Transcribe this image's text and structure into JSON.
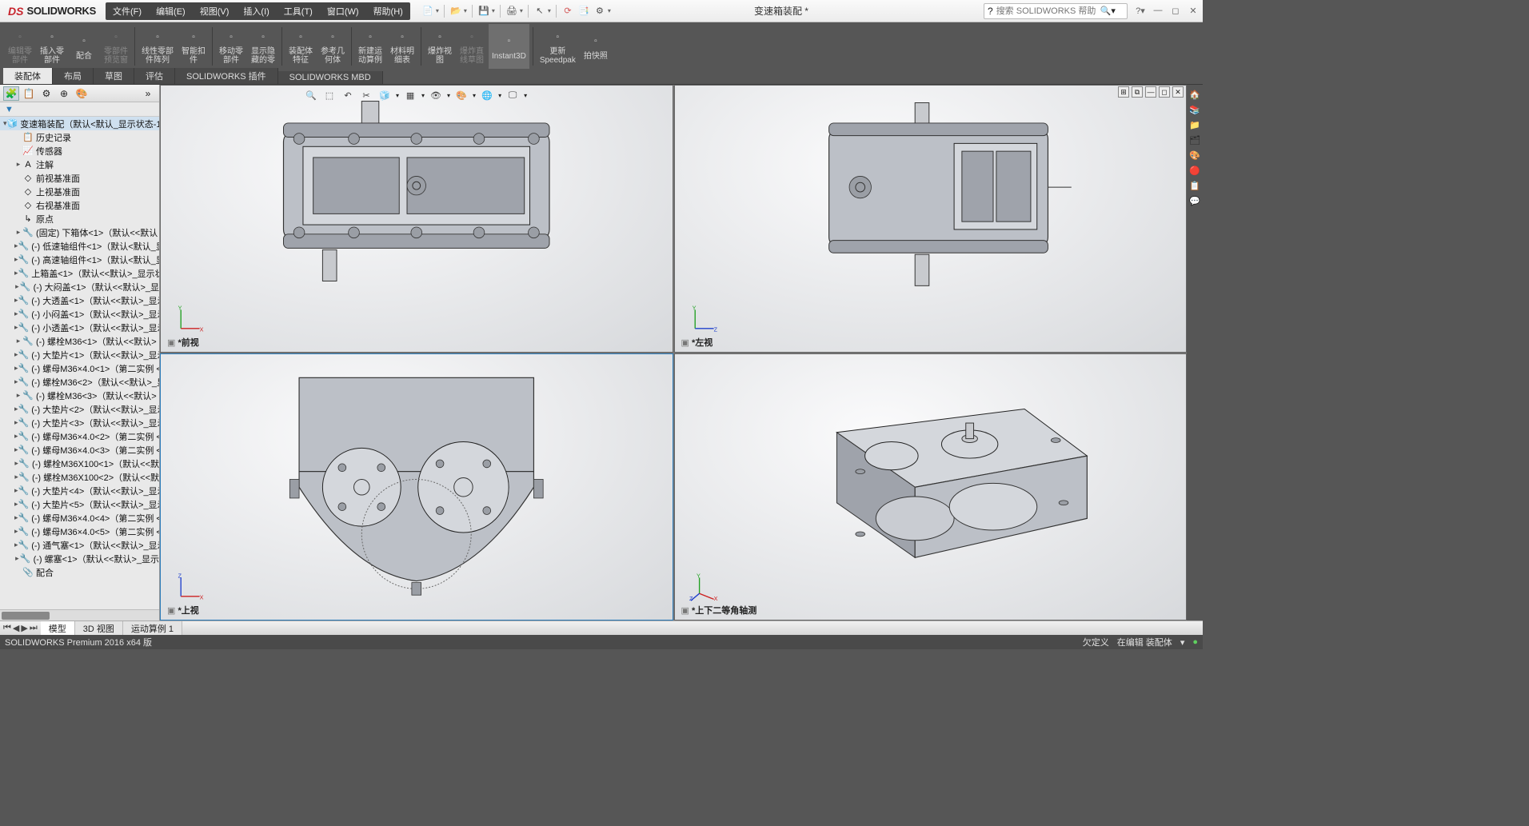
{
  "app": {
    "brand_prefix": "DS",
    "brand": "SOLIDWORKS",
    "doc": "变速箱装配 *",
    "search_placeholder": "搜索 SOLIDWORKS 帮助"
  },
  "menu": [
    "文件(F)",
    "编辑(E)",
    "视图(V)",
    "插入(I)",
    "工具(T)",
    "窗口(W)",
    "帮助(H)"
  ],
  "ribbon": [
    {
      "l1": "编辑零",
      "l2": "部件",
      "dis": true
    },
    {
      "l1": "插入零",
      "l2": "部件"
    },
    {
      "l1": "配合",
      "l2": ""
    },
    {
      "l1": "零部件",
      "l2": "预览窗",
      "dis": true
    },
    {
      "sep": true
    },
    {
      "l1": "线性零部",
      "l2": "件阵列"
    },
    {
      "l1": "智能扣",
      "l2": "件"
    },
    {
      "sep": true
    },
    {
      "l1": "移动零",
      "l2": "部件"
    },
    {
      "l1": "显示隐",
      "l2": "藏的零"
    },
    {
      "sep": true
    },
    {
      "l1": "装配体",
      "l2": "特征"
    },
    {
      "l1": "参考几",
      "l2": "何体"
    },
    {
      "sep": true
    },
    {
      "l1": "新建运",
      "l2": "动算例"
    },
    {
      "l1": "材料明",
      "l2": "细表"
    },
    {
      "sep": true
    },
    {
      "l1": "爆炸视",
      "l2": "图"
    },
    {
      "l1": "爆炸直",
      "l2": "线草图",
      "dis": true
    },
    {
      "l1": "Instant3D",
      "l2": "",
      "sel": true
    },
    {
      "sep": true
    },
    {
      "l1": "更新",
      "l2": "Speedpak"
    },
    {
      "l1": "拍快照",
      "l2": ""
    }
  ],
  "tabs": [
    "装配体",
    "布局",
    "草图",
    "评估",
    "SOLIDWORKS 插件",
    "SOLIDWORKS MBD"
  ],
  "tree_root": "变速箱装配（默认<默认_显示状态-1>",
  "tree": [
    {
      "t": "历史记录",
      "i": "📋"
    },
    {
      "t": "传感器",
      "i": "📈"
    },
    {
      "t": "注解",
      "i": "A",
      "exp": true
    },
    {
      "t": "前视基准面",
      "i": "◇",
      "ind": 1
    },
    {
      "t": "上视基准面",
      "i": "◇",
      "ind": 1
    },
    {
      "t": "右视基准面",
      "i": "◇",
      "ind": 1
    },
    {
      "t": "原点",
      "i": "↳",
      "ind": 1
    },
    {
      "t": "(固定) 下箱体<1>（默认<<默认",
      "i": "🔧",
      "exp": true
    },
    {
      "t": "(-) 低速轴组件<1>（默认<默认_显",
      "i": "🔧",
      "exp": true
    },
    {
      "t": "(-) 高速轴组件<1>（默认<默认_显",
      "i": "🔧",
      "exp": true
    },
    {
      "t": "上箱盖<1>（默认<<默认>_显示状",
      "i": "🔧",
      "exp": true
    },
    {
      "t": "(-) 大闷盖<1>（默认<<默认>_显",
      "i": "🔧",
      "exp": true
    },
    {
      "t": "(-) 大透盖<1>（默认<<默认>_显示",
      "i": "🔧",
      "exp": true
    },
    {
      "t": "(-) 小闷盖<1>（默认<<默认>_显示",
      "i": "🔧",
      "exp": true
    },
    {
      "t": "(-) 小透盖<1>（默认<<默认>_显示",
      "i": "🔧",
      "exp": true
    },
    {
      "t": "(-) 螺栓M36<1>（默认<<默认>",
      "i": "🔧",
      "exp": true
    },
    {
      "t": "(-) 大垫片<1>（默认<<默认>_显示",
      "i": "🔧",
      "exp": true
    },
    {
      "t": "(-) 螺母M36×4.0<1>（第二实例 <",
      "i": "🔧",
      "exp": true
    },
    {
      "t": "(-) 螺栓M36<2>（默认<<默认>_显",
      "i": "🔧",
      "exp": true
    },
    {
      "t": "(-) 螺栓M36<3>（默认<<默认>",
      "i": "🔧",
      "exp": true
    },
    {
      "t": "(-) 大垫片<2>（默认<<默认>_显示",
      "i": "🔧",
      "exp": true
    },
    {
      "t": "(-) 大垫片<3>（默认<<默认>_显示",
      "i": "🔧",
      "exp": true
    },
    {
      "t": "(-) 螺母M36×4.0<2>（第二实例 <",
      "i": "🔧",
      "exp": true
    },
    {
      "t": "(-) 螺母M36×4.0<3>（第二实例 <",
      "i": "🔧",
      "exp": true
    },
    {
      "t": "(-) 螺栓M36X100<1>（默认<<默",
      "i": "🔧",
      "exp": true
    },
    {
      "t": "(-) 螺栓M36X100<2>（默认<<默",
      "i": "🔧",
      "exp": true
    },
    {
      "t": "(-) 大垫片<4>（默认<<默认>_显示",
      "i": "🔧",
      "exp": true
    },
    {
      "t": "(-) 大垫片<5>（默认<<默认>_显示",
      "i": "🔧",
      "exp": true
    },
    {
      "t": "(-) 螺母M36×4.0<4>（第二实例 <",
      "i": "🔧",
      "exp": true
    },
    {
      "t": "(-) 螺母M36×4.0<5>（第二实例 <",
      "i": "🔧",
      "exp": true
    },
    {
      "t": "(-) 通气塞<1>（默认<<默认>_显示",
      "i": "🔧",
      "exp": true
    },
    {
      "t": "(-) 螺塞<1>（默认<<默认>_显示",
      "i": "🔧",
      "exp": true
    },
    {
      "t": "配合",
      "i": "📎"
    }
  ],
  "views": {
    "tl": "*前视",
    "tr": "*左视",
    "bl": "*上视",
    "br": "*上下二等角轴测"
  },
  "btabs": [
    "模型",
    "3D 视图",
    "运动算例 1"
  ],
  "status": {
    "left": "SOLIDWORKS Premium 2016 x64 版",
    "r1": "欠定义",
    "r2": "在编辑 装配体"
  }
}
